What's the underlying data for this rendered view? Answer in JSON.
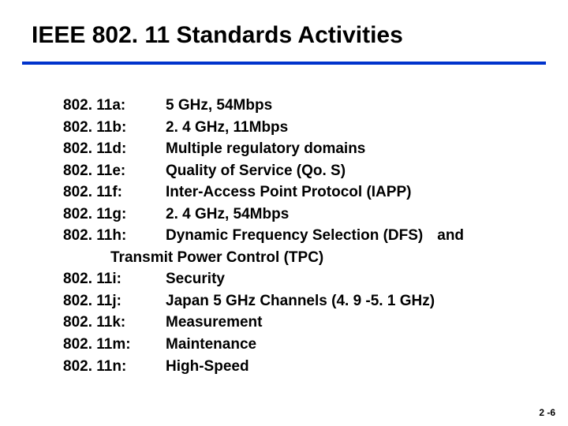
{
  "title": "IEEE 802. 11 Standards Activities",
  "items": [
    {
      "label": "802. 11a:",
      "desc": "5 GHz, 54Mbps"
    },
    {
      "label": "802. 11b:",
      "desc": "2. 4 GHz, 11Mbps"
    },
    {
      "label": "802. 11d:",
      "desc": "Multiple regulatory domains"
    },
    {
      "label": "802. 11e:",
      "desc": "Quality of Service (Qo. S)"
    },
    {
      "label": "802. 11f:",
      "desc": "Inter-Access Point Protocol (IAPP)"
    },
    {
      "label": "802. 11g:",
      "desc": "2. 4 GHz, 54Mbps"
    },
    {
      "label": "802. 11h:",
      "desc": "Dynamic Frequency Selection (DFS)",
      "tail": "and",
      "cont": "Transmit Power Control (TPC)"
    },
    {
      "label": "802. 11i:",
      "desc": "Security"
    },
    {
      "label": "802. 11j:",
      "desc": "Japan 5 GHz Channels (4. 9 -5. 1 GHz)"
    },
    {
      "label": "802. 11k:",
      "desc": "Measurement"
    },
    {
      "label": "802. 11m:",
      "desc": "Maintenance"
    },
    {
      "label": "802. 11n:",
      "desc": "High-Speed"
    }
  ],
  "pagenum": "2 -6",
  "colors": {
    "underline": "#0033cc",
    "text": "#000000",
    "background": "#ffffff"
  },
  "fontsizes": {
    "title": 30,
    "body": 19,
    "pagenum": 12
  }
}
